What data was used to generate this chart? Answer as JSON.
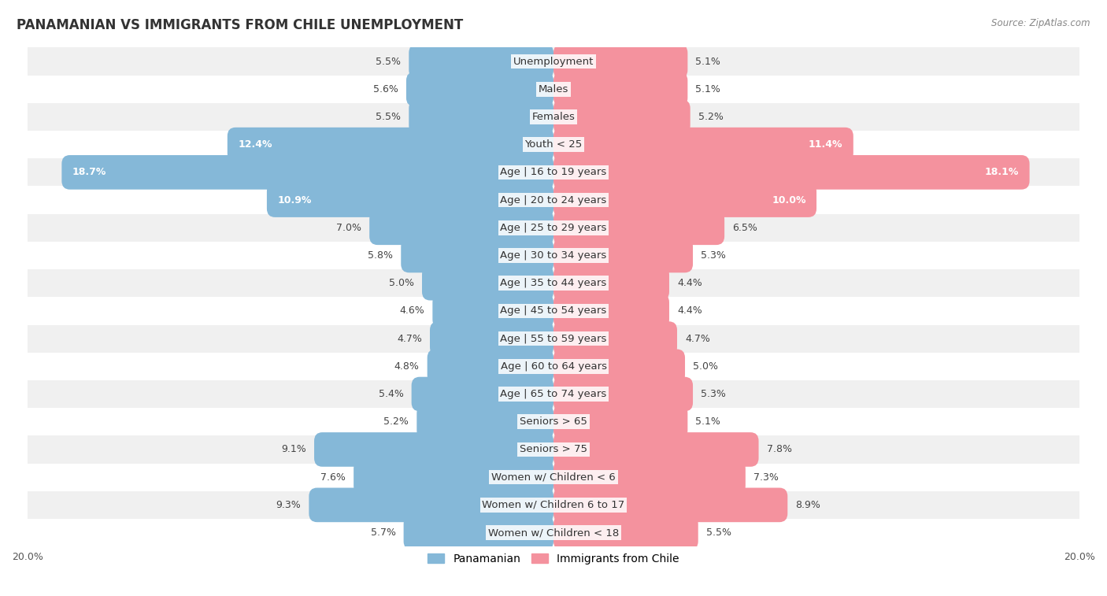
{
  "title": "PANAMANIAN VS IMMIGRANTS FROM CHILE UNEMPLOYMENT",
  "source": "Source: ZipAtlas.com",
  "categories": [
    "Unemployment",
    "Males",
    "Females",
    "Youth < 25",
    "Age | 16 to 19 years",
    "Age | 20 to 24 years",
    "Age | 25 to 29 years",
    "Age | 30 to 34 years",
    "Age | 35 to 44 years",
    "Age | 45 to 54 years",
    "Age | 55 to 59 years",
    "Age | 60 to 64 years",
    "Age | 65 to 74 years",
    "Seniors > 65",
    "Seniors > 75",
    "Women w/ Children < 6",
    "Women w/ Children 6 to 17",
    "Women w/ Children < 18"
  ],
  "panamanian": [
    5.5,
    5.6,
    5.5,
    12.4,
    18.7,
    10.9,
    7.0,
    5.8,
    5.0,
    4.6,
    4.7,
    4.8,
    5.4,
    5.2,
    9.1,
    7.6,
    9.3,
    5.7
  ],
  "chile": [
    5.1,
    5.1,
    5.2,
    11.4,
    18.1,
    10.0,
    6.5,
    5.3,
    4.4,
    4.4,
    4.7,
    5.0,
    5.3,
    5.1,
    7.8,
    7.3,
    8.9,
    5.5
  ],
  "panamanian_color": "#85b8d8",
  "chile_color": "#f4929e",
  "axis_limit": 20.0,
  "bg_color": "#ffffff",
  "row_colors_odd": "#f0f0f0",
  "row_colors_even": "#ffffff",
  "label_fontsize": 9.5,
  "title_fontsize": 12,
  "value_fontsize": 9,
  "legend_fontsize": 10
}
